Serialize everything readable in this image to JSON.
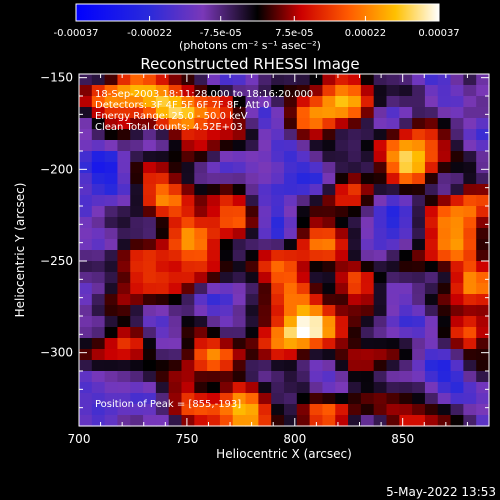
{
  "chart_data": {
    "type": "heatmap",
    "title": "Reconstructed RHESSI Image",
    "xlabel": "Heliocentric X (arcsec)",
    "ylabel": "Heliocentric Y (arcsec)",
    "xlim": [
      700,
      890
    ],
    "ylim": [
      -340,
      -148
    ],
    "x_ticks": [
      700,
      750,
      800,
      850
    ],
    "y_ticks": [
      -150,
      -200,
      -250,
      -300
    ],
    "colorbar": {
      "colormap": "blue-purple-black-red-orange-yellow-white",
      "range": [
        -0.00037,
        0.00037
      ],
      "tick_labels": [
        "-0.00037",
        "-0.00022",
        "-7.5e-05",
        "7.5e-05",
        "0.00022",
        "0.00037"
      ],
      "unit_label": "(photons cm⁻² s⁻¹ asec⁻²)"
    },
    "info_lines": [
      "18-Sep-2003 18:11:28.000 to 18:16:20.000",
      "Detectors: 3F 4F 5F 6F 7F 8F, Att 0",
      "Energy Range: 25.0 - 50.0 keV",
      "Clean    Total counts: 4.52E+03"
    ],
    "peak_text": "Position of Peak = [855,-193]",
    "peak": {
      "x": 855,
      "y": -193,
      "value": 0.00037
    },
    "grid_cells": [
      32,
      32
    ],
    "bright_sources": [
      {
        "x": 855,
        "y": -193,
        "rel": 1.0
      },
      {
        "x": 718,
        "y": -160,
        "rel": 0.75
      },
      {
        "x": 742,
        "y": -165,
        "rel": 0.8
      },
      {
        "x": 762,
        "y": -175,
        "rel": 0.55
      },
      {
        "x": 810,
        "y": -170,
        "rel": 0.6
      },
      {
        "x": 825,
        "y": -158,
        "rel": 0.6
      },
      {
        "x": 738,
        "y": -210,
        "rel": 0.6
      },
      {
        "x": 772,
        "y": -225,
        "rel": 0.7
      },
      {
        "x": 745,
        "y": -235,
        "rel": 0.5
      },
      {
        "x": 822,
        "y": -212,
        "rel": 0.5
      },
      {
        "x": 812,
        "y": -240,
        "rel": 0.55
      },
      {
        "x": 880,
        "y": -225,
        "rel": 0.7
      },
      {
        "x": 865,
        "y": -240,
        "rel": 0.5
      },
      {
        "x": 725,
        "y": -260,
        "rel": 0.55
      },
      {
        "x": 755,
        "y": -255,
        "rel": 0.55
      },
      {
        "x": 792,
        "y": -258,
        "rel": 0.6
      },
      {
        "x": 830,
        "y": -265,
        "rel": 0.5
      },
      {
        "x": 880,
        "y": -262,
        "rel": 0.65
      },
      {
        "x": 720,
        "y": -300,
        "rel": 0.55
      },
      {
        "x": 762,
        "y": -300,
        "rel": 0.6
      },
      {
        "x": 795,
        "y": -290,
        "rel": 0.7
      },
      {
        "x": 808,
        "y": -285,
        "rel": 0.65
      },
      {
        "x": 838,
        "y": -298,
        "rel": 0.5
      },
      {
        "x": 885,
        "y": -290,
        "rel": 0.55
      },
      {
        "x": 776,
        "y": -335,
        "rel": 0.85
      },
      {
        "x": 815,
        "y": -330,
        "rel": 0.6
      },
      {
        "x": 855,
        "y": -335,
        "rel": 0.55
      },
      {
        "x": 752,
        "y": -325,
        "rel": 0.45
      }
    ],
    "dark_sources": [
      {
        "x": 800,
        "y": -205,
        "rel": 0.8
      },
      {
        "x": 712,
        "y": -205,
        "rel": 0.6
      },
      {
        "x": 785,
        "y": -230,
        "rel": 0.7
      },
      {
        "x": 848,
        "y": -230,
        "rel": 0.7
      },
      {
        "x": 770,
        "y": -275,
        "rel": 0.75
      },
      {
        "x": 845,
        "y": -280,
        "rel": 0.6
      },
      {
        "x": 725,
        "y": -320,
        "rel": 0.5
      },
      {
        "x": 865,
        "y": -310,
        "rel": 0.6
      },
      {
        "x": 808,
        "y": -312,
        "rel": 0.55
      }
    ]
  },
  "footer": {
    "timestamp": "5-May-2022 13:53"
  }
}
